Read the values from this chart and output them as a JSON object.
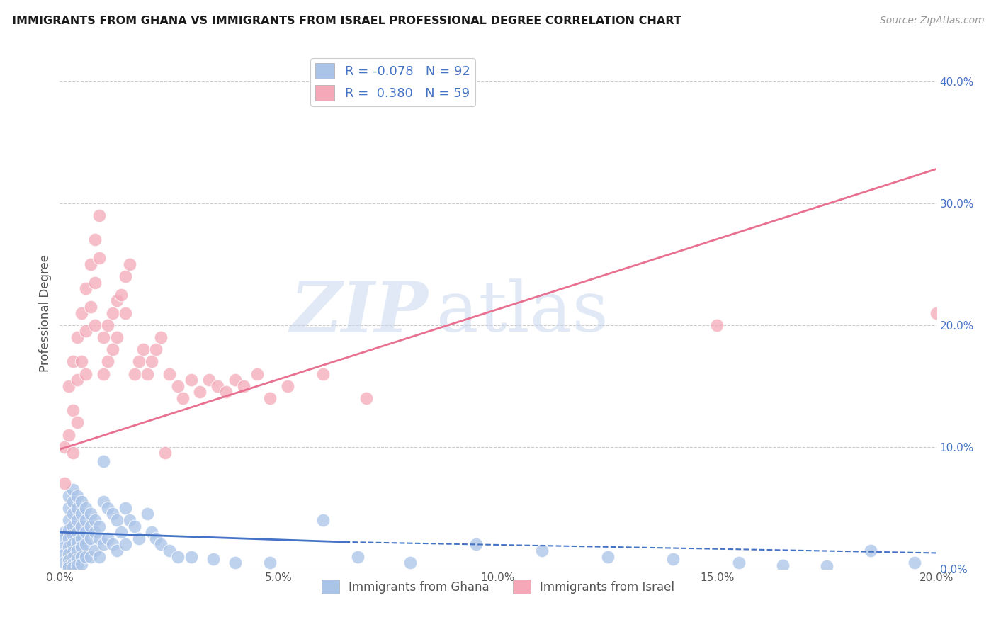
{
  "title": "IMMIGRANTS FROM GHANA VS IMMIGRANTS FROM ISRAEL PROFESSIONAL DEGREE CORRELATION CHART",
  "source": "Source: ZipAtlas.com",
  "xlabel_ticks": [
    "0.0%",
    "5.0%",
    "10.0%",
    "15.0%",
    "20.0%"
  ],
  "xlabel_vals": [
    0.0,
    0.05,
    0.1,
    0.15,
    0.2
  ],
  "ylabel": "Professional Degree",
  "ylabel_ticks_right": [
    "0.0%",
    "10.0%",
    "20.0%",
    "30.0%",
    "40.0%"
  ],
  "ylabel_vals_right": [
    0.0,
    0.1,
    0.2,
    0.3,
    0.4
  ],
  "xlim": [
    0.0,
    0.2
  ],
  "ylim": [
    0.0,
    0.42
  ],
  "ghana_R": -0.078,
  "ghana_N": 92,
  "israel_R": 0.38,
  "israel_N": 59,
  "ghana_color": "#aac4e8",
  "israel_color": "#f4a8b8",
  "ghana_line_color": "#4472c4",
  "israel_line_color": "#e87090",
  "watermark_zip": "ZIP",
  "watermark_atlas": "atlas",
  "legend_label1": "Immigrants from Ghana",
  "legend_label2": "Immigrants from Israel",
  "ghana_x": [
    0.001,
    0.001,
    0.001,
    0.001,
    0.001,
    0.002,
    0.002,
    0.002,
    0.002,
    0.002,
    0.002,
    0.002,
    0.002,
    0.002,
    0.002,
    0.003,
    0.003,
    0.003,
    0.003,
    0.003,
    0.003,
    0.003,
    0.003,
    0.003,
    0.003,
    0.004,
    0.004,
    0.004,
    0.004,
    0.004,
    0.004,
    0.004,
    0.004,
    0.005,
    0.005,
    0.005,
    0.005,
    0.005,
    0.005,
    0.005,
    0.006,
    0.006,
    0.006,
    0.006,
    0.006,
    0.007,
    0.007,
    0.007,
    0.007,
    0.008,
    0.008,
    0.008,
    0.009,
    0.009,
    0.009,
    0.01,
    0.01,
    0.01,
    0.011,
    0.011,
    0.012,
    0.012,
    0.013,
    0.013,
    0.014,
    0.015,
    0.015,
    0.016,
    0.017,
    0.018,
    0.02,
    0.021,
    0.022,
    0.023,
    0.025,
    0.027,
    0.03,
    0.035,
    0.04,
    0.048,
    0.06,
    0.068,
    0.08,
    0.095,
    0.11,
    0.125,
    0.14,
    0.155,
    0.165,
    0.175,
    0.185,
    0.195
  ],
  "ghana_y": [
    0.03,
    0.025,
    0.018,
    0.012,
    0.005,
    0.06,
    0.05,
    0.04,
    0.032,
    0.025,
    0.018,
    0.012,
    0.007,
    0.003,
    0.001,
    0.065,
    0.055,
    0.045,
    0.035,
    0.028,
    0.02,
    0.014,
    0.009,
    0.004,
    0.001,
    0.06,
    0.05,
    0.04,
    0.03,
    0.022,
    0.015,
    0.008,
    0.003,
    0.055,
    0.045,
    0.035,
    0.025,
    0.018,
    0.01,
    0.004,
    0.05,
    0.04,
    0.03,
    0.02,
    0.01,
    0.045,
    0.035,
    0.025,
    0.01,
    0.04,
    0.03,
    0.015,
    0.035,
    0.025,
    0.01,
    0.088,
    0.055,
    0.02,
    0.05,
    0.025,
    0.045,
    0.02,
    0.04,
    0.015,
    0.03,
    0.05,
    0.02,
    0.04,
    0.035,
    0.025,
    0.045,
    0.03,
    0.025,
    0.02,
    0.015,
    0.01,
    0.01,
    0.008,
    0.005,
    0.005,
    0.04,
    0.01,
    0.005,
    0.02,
    0.015,
    0.01,
    0.008,
    0.005,
    0.003,
    0.002,
    0.015,
    0.005
  ],
  "israel_x": [
    0.001,
    0.001,
    0.002,
    0.002,
    0.003,
    0.003,
    0.003,
    0.004,
    0.004,
    0.004,
    0.005,
    0.005,
    0.006,
    0.006,
    0.006,
    0.007,
    0.007,
    0.008,
    0.008,
    0.008,
    0.009,
    0.009,
    0.01,
    0.01,
    0.011,
    0.011,
    0.012,
    0.012,
    0.013,
    0.013,
    0.014,
    0.015,
    0.015,
    0.016,
    0.017,
    0.018,
    0.019,
    0.02,
    0.021,
    0.022,
    0.023,
    0.024,
    0.025,
    0.027,
    0.028,
    0.03,
    0.032,
    0.034,
    0.036,
    0.038,
    0.04,
    0.042,
    0.045,
    0.048,
    0.052,
    0.06,
    0.07,
    0.15,
    0.2
  ],
  "israel_y": [
    0.1,
    0.07,
    0.15,
    0.11,
    0.17,
    0.13,
    0.095,
    0.19,
    0.155,
    0.12,
    0.21,
    0.17,
    0.23,
    0.195,
    0.16,
    0.25,
    0.215,
    0.27,
    0.235,
    0.2,
    0.29,
    0.255,
    0.19,
    0.16,
    0.2,
    0.17,
    0.21,
    0.18,
    0.22,
    0.19,
    0.225,
    0.24,
    0.21,
    0.25,
    0.16,
    0.17,
    0.18,
    0.16,
    0.17,
    0.18,
    0.19,
    0.095,
    0.16,
    0.15,
    0.14,
    0.155,
    0.145,
    0.155,
    0.15,
    0.145,
    0.155,
    0.15,
    0.16,
    0.14,
    0.15,
    0.16,
    0.14,
    0.2,
    0.21
  ],
  "ghana_line_x0": 0.0,
  "ghana_line_y0": 0.03,
  "ghana_line_x1": 0.065,
  "ghana_line_y1": 0.022,
  "ghana_line_dash_x0": 0.065,
  "ghana_line_dash_y0": 0.022,
  "ghana_line_dash_x1": 0.2,
  "ghana_line_dash_y1": 0.013,
  "israel_line_x0": 0.0,
  "israel_line_y0": 0.098,
  "israel_line_x1": 0.2,
  "israel_line_y1": 0.328
}
